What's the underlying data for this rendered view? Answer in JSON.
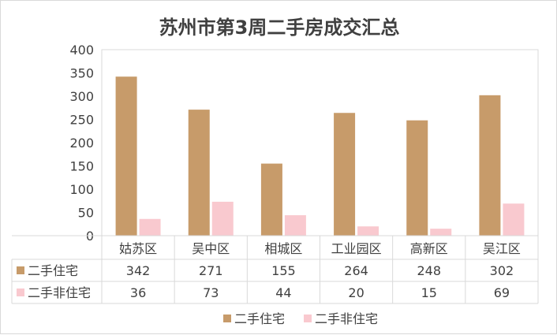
{
  "chart_data": {
    "type": "bar",
    "title": "苏州市第3周二手房成交汇总",
    "categories": [
      "姑苏区",
      "吴中区",
      "相城区",
      "工业园区",
      "高新区",
      "吴江区"
    ],
    "series": [
      {
        "name": "二手住宅",
        "color": "#c79b6a",
        "values": [
          342,
          271,
          155,
          264,
          248,
          302
        ]
      },
      {
        "name": "二手非住宅",
        "color": "#f9c9cf",
        "values": [
          36,
          73,
          44,
          20,
          15,
          69
        ]
      }
    ],
    "yticks": [
      "0",
      "50",
      "100",
      "150",
      "200",
      "250",
      "300",
      "350",
      "400"
    ],
    "ylim": [
      0,
      400
    ],
    "data_table": true,
    "legend": "bottom",
    "grid": false
  }
}
